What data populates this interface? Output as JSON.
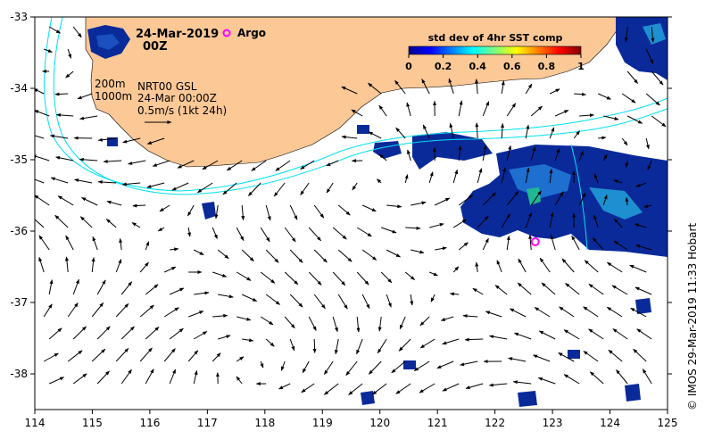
{
  "header": {
    "date": "24-Mar-2019",
    "hour": "00Z",
    "argo_label": "Argo"
  },
  "legend": {
    "contour_200": "200m",
    "contour_1000": "1000m",
    "product": "NRT00 GSL",
    "product_time": "24-Mar 00:00Z",
    "vector_scale": "0.5m/s (1kt 24h)"
  },
  "colorbar": {
    "title": "std dev of 4hr SST comp",
    "ticks": [
      "0",
      "0.2",
      "0.4",
      "0.6",
      "0.8",
      "1"
    ]
  },
  "credit": "© IMOS 29-Mar-2019 11:33 Hobart",
  "colors": {
    "land": "#fbc896",
    "contour": "#00e0f0",
    "argo": "#ff00ff",
    "sst_low": "#0a2a9a",
    "sst_mid": "#1e8fd0"
  },
  "chart_data": {
    "type": "map",
    "xlim": [
      114,
      125
    ],
    "ylim": [
      -38.5,
      -33
    ],
    "x_ticks": [
      "114",
      "115",
      "116",
      "117",
      "118",
      "119",
      "120",
      "121",
      "122",
      "123",
      "124",
      "125"
    ],
    "y_ticks": [
      "-33",
      "-34",
      "-35",
      "-36",
      "-37",
      "-38"
    ],
    "argo_float": {
      "lon": 122.7,
      "lat": -36.15
    }
  }
}
